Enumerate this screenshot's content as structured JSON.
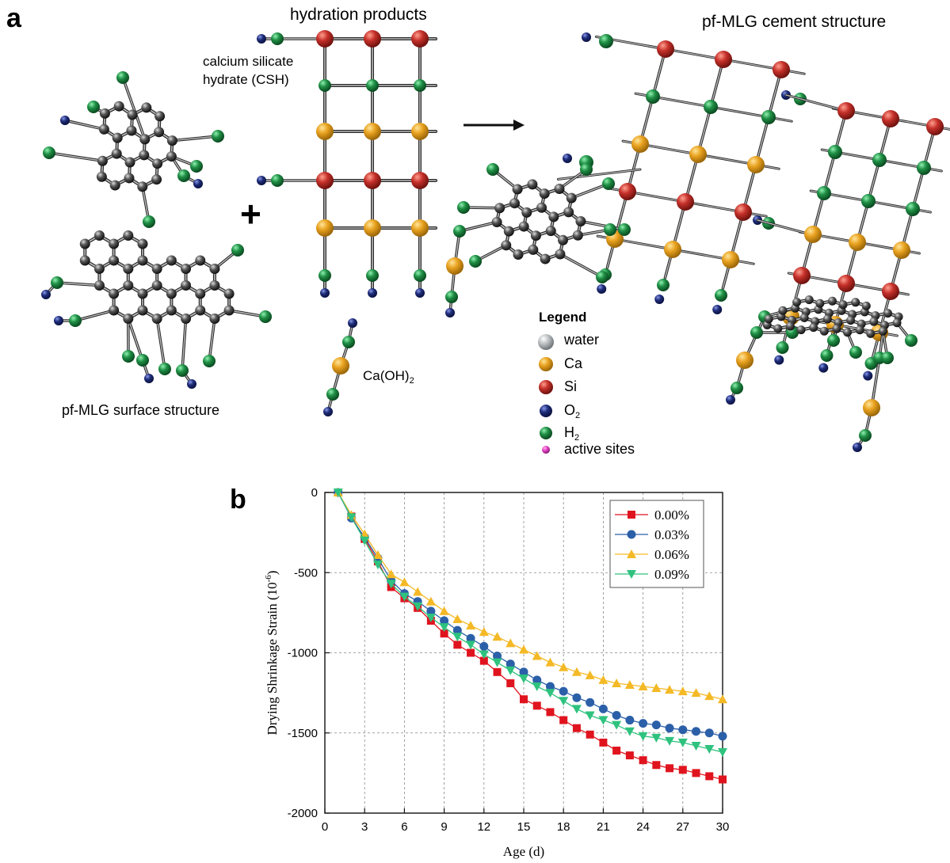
{
  "panel_a": {
    "label": "a",
    "title_hydration": "hydration products",
    "title_cement": "pf-MLG cement structure",
    "csh_line1": "calcium silicate",
    "csh_line2": "hydrate (CSH)",
    "caoh_base": "Ca(OH)",
    "caoh_sub": "2",
    "surface_label": "pf-MLG surface structure",
    "plus": "+",
    "legend": {
      "title": "Legend",
      "items": [
        {
          "name": "water",
          "sub": "",
          "color": "#b8bcbe"
        },
        {
          "name": "Ca",
          "sub": "",
          "color": "#e9a21f"
        },
        {
          "name": "Si",
          "sub": "",
          "color": "#c5302a"
        },
        {
          "name": "O",
          "sub": "2",
          "color": "#1f2d7a"
        },
        {
          "name": "H",
          "sub": "2",
          "color": "#1f8f45"
        },
        {
          "name": "active sites",
          "sub": "",
          "color": "#e23fc1"
        }
      ]
    },
    "colors": {
      "carbon": "#3a3a3a",
      "ca": "#e9a21f",
      "si": "#c5302a",
      "o": "#1f2d7a",
      "h": "#1f8f45"
    }
  },
  "panel_b": {
    "label": "b"
  },
  "chart_data": {
    "type": "line",
    "xlabel": "Age (d)",
    "ylabel": "Drying Shrinkage Strain (10",
    "ylabel_sup": "-6",
    "ylabel_close": ")",
    "xlim": [
      0,
      30
    ],
    "ylim": [
      -2000,
      0
    ],
    "xticks": [
      0,
      3,
      6,
      9,
      12,
      15,
      18,
      21,
      24,
      27,
      30
    ],
    "yticks": [
      0,
      -500,
      -1000,
      -1500,
      -2000
    ],
    "grid": true,
    "legend_position": "top-right",
    "x": [
      1,
      2,
      3,
      4,
      5,
      6,
      7,
      8,
      9,
      10,
      11,
      12,
      13,
      14,
      15,
      16,
      17,
      18,
      19,
      20,
      21,
      22,
      23,
      24,
      25,
      26,
      27,
      28,
      29,
      30
    ],
    "series": [
      {
        "name": "0.00%",
        "color": "#e0141e",
        "marker": "square",
        "values": [
          0,
          -150,
          -290,
          -430,
          -590,
          -660,
          -720,
          -800,
          -880,
          -950,
          -1000,
          -1050,
          -1120,
          -1190,
          -1290,
          -1330,
          -1370,
          -1420,
          -1470,
          -1510,
          -1560,
          -1610,
          -1640,
          -1670,
          -1700,
          -1720,
          -1730,
          -1750,
          -1770,
          -1790
        ]
      },
      {
        "name": "0.03%",
        "color": "#2b5fa8",
        "marker": "circle",
        "values": [
          0,
          -160,
          -280,
          -410,
          -550,
          -630,
          -680,
          -740,
          -800,
          -860,
          -910,
          -960,
          -1020,
          -1070,
          -1120,
          -1170,
          -1210,
          -1240,
          -1280,
          -1310,
          -1350,
          -1390,
          -1420,
          -1440,
          -1450,
          -1470,
          -1480,
          -1490,
          -1500,
          -1520
        ]
      },
      {
        "name": "0.06%",
        "color": "#f4b926",
        "marker": "triangle-up",
        "values": [
          0,
          -140,
          -260,
          -390,
          -510,
          -560,
          -620,
          -680,
          -740,
          -790,
          -830,
          -870,
          -900,
          -940,
          -980,
          -1020,
          -1060,
          -1090,
          -1120,
          -1140,
          -1170,
          -1190,
          -1200,
          -1210,
          -1220,
          -1230,
          -1240,
          -1250,
          -1270,
          -1290
        ]
      },
      {
        "name": "0.09%",
        "color": "#2ec27e",
        "marker": "triangle-down",
        "values": [
          0,
          -155,
          -300,
          -450,
          -570,
          -650,
          -710,
          -780,
          -840,
          -900,
          -950,
          -1010,
          -1060,
          -1110,
          -1160,
          -1210,
          -1250,
          -1300,
          -1350,
          -1390,
          -1420,
          -1450,
          -1490,
          -1520,
          -1530,
          -1550,
          -1560,
          -1580,
          -1600,
          -1620
        ]
      }
    ]
  }
}
